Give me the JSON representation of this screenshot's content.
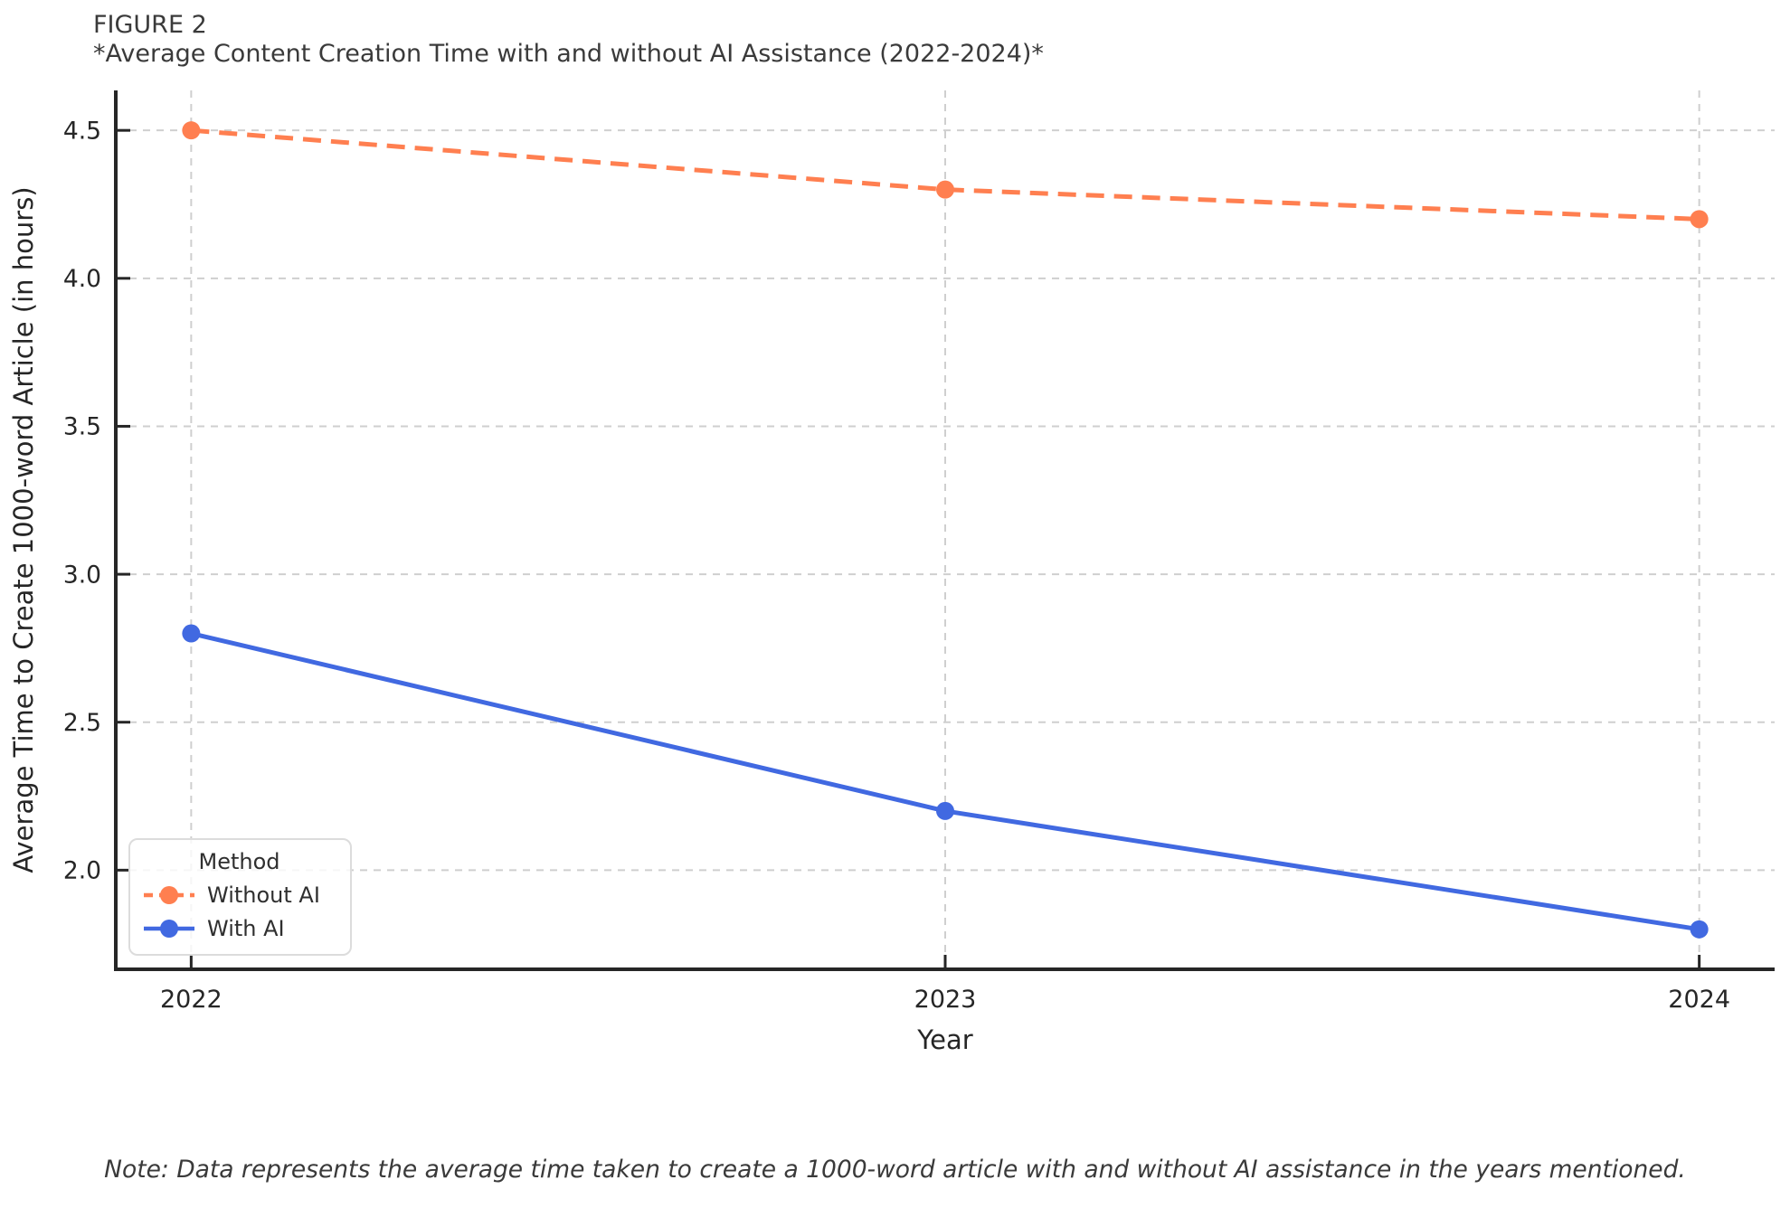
{
  "figure": {
    "label": "FIGURE 2",
    "title": "*Average Content Creation Time with and without AI Assistance (2022-2024)*"
  },
  "note": "Note: Data represents the average time taken to create a 1000-word article with and without AI assistance in the years mentioned.",
  "chart_data": {
    "type": "line",
    "x": [
      "2022",
      "2023",
      "2024"
    ],
    "series": [
      {
        "name": "Without AI",
        "values": [
          4.5,
          4.3,
          4.2
        ],
        "color": "#FF7F50",
        "line_style": "dashed",
        "marker": "circle"
      },
      {
        "name": "With AI",
        "values": [
          2.8,
          2.2,
          1.8
        ],
        "color": "#4169E1",
        "line_style": "solid",
        "marker": "circle"
      }
    ],
    "xlabel": "Year",
    "ylabel": "Average Time to Create 1000-word Article (in hours)",
    "yticks": [
      "2.0",
      "2.5",
      "3.0",
      "3.5",
      "4.0",
      "4.5"
    ],
    "ylim": [
      1.665,
      4.635
    ],
    "legend_title": "Method",
    "legend_position": "lower left",
    "grid": true,
    "grid_style": "dashed"
  },
  "colors": {
    "grid": "#cfcfcf",
    "axis": "#262626",
    "tick_text": "#262626",
    "title_text": "#3a3a3a"
  }
}
